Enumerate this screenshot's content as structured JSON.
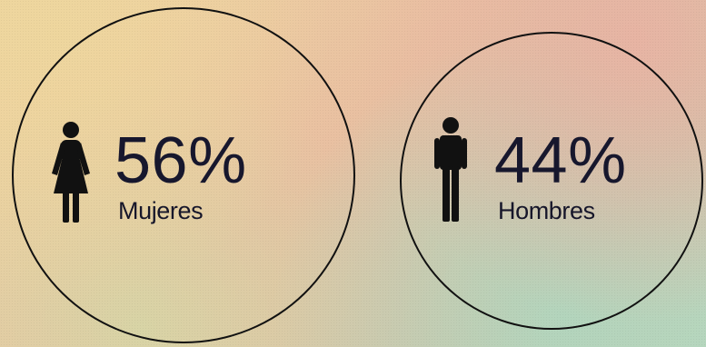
{
  "stats": [
    {
      "percent": "56%",
      "label": "Mujeres",
      "icon": "female-icon"
    },
    {
      "percent": "44%",
      "label": "Hombres",
      "icon": "male-icon"
    }
  ],
  "colors": {
    "ink": "#111111",
    "text": "#17172d"
  }
}
